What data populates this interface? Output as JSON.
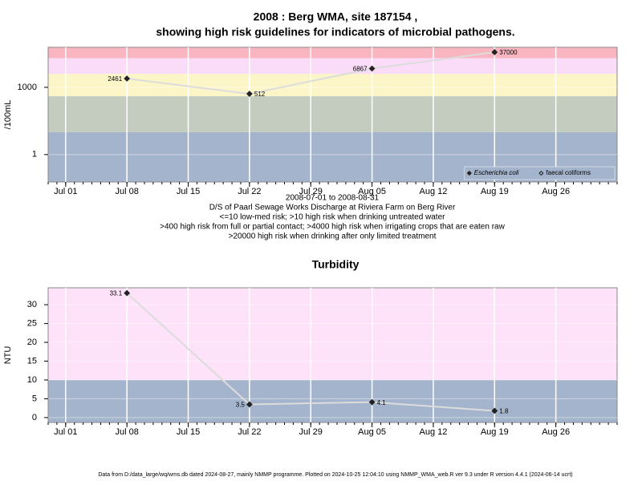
{
  "chart_data": [
    {
      "type": "line",
      "title_lines": [
        "2008 : Berg WMA, site 187154 ,",
        "showing high risk guidelines for indicators of microbial pathogens."
      ],
      "ylabel": "/100mL",
      "log_scale": true,
      "ylim": [
        0.06,
        61000
      ],
      "yticks": [
        1,
        1000
      ],
      "xlim": [
        "2008-06-29",
        "2008-09-02"
      ],
      "xticks": [
        {
          "value": "2008-07-01",
          "label": "Jul 01"
        },
        {
          "value": "2008-07-08",
          "label": "Jul 08"
        },
        {
          "value": "2008-07-15",
          "label": "Jul 15"
        },
        {
          "value": "2008-07-22",
          "label": "Jul 22"
        },
        {
          "value": "2008-07-29",
          "label": "Jul 29"
        },
        {
          "value": "2008-08-05",
          "label": "Aug 05"
        },
        {
          "value": "2008-08-12",
          "label": "Aug 12"
        },
        {
          "value": "2008-08-19",
          "label": "Aug 19"
        },
        {
          "value": "2008-08-26",
          "label": "Aug 26"
        }
      ],
      "x": [
        "2008-07-08",
        "2008-07-22",
        "2008-08-05",
        "2008-08-19"
      ],
      "series": [
        {
          "name": "Escherichia coli",
          "color": "#222222",
          "marker": "filled",
          "values": [
            2461,
            512,
            6867,
            37000
          ]
        },
        {
          "name": "faecal coliforms",
          "color": "#222222",
          "marker": "open",
          "values": [
            null,
            null,
            null,
            null
          ]
        }
      ],
      "line_color": "#dcdcdc",
      "bands": [
        {
          "upper": 10,
          "color": "#a4b4cc"
        },
        {
          "upper": 400,
          "color": "#c4ccc0"
        },
        {
          "upper": 4000,
          "color": "#fbf5c8"
        },
        {
          "upper": 20000,
          "color": "#fbdcf8"
        },
        {
          "upper": null,
          "color": "#f9b6c0"
        }
      ],
      "grid": true,
      "legend": "bottom-right",
      "notes": [
        "2008-07-01 to 2008-08-31",
        "D/S of Paarl Sewage Works Discharge at Riviera Farm on Berg River",
        "<=10 low-med risk; >10 high risk when drinking untreated water",
        ">400 high risk from full or partial contact; >4000 high risk when irrigating crops that are eaten raw",
        ">20000 high risk when drinking after only limited treatment"
      ]
    },
    {
      "type": "line",
      "title_lines": [
        "Turbidity"
      ],
      "ylabel": "NTU",
      "log_scale": false,
      "ylim": [
        -1.3,
        34.5
      ],
      "yticks": [
        0,
        5,
        10,
        15,
        20,
        25,
        30
      ],
      "xlim": [
        "2008-06-29",
        "2008-09-02"
      ],
      "xticks": [
        {
          "value": "2008-07-01",
          "label": "Jul 01"
        },
        {
          "value": "2008-07-08",
          "label": "Jul 08"
        },
        {
          "value": "2008-07-15",
          "label": "Jul 15"
        },
        {
          "value": "2008-07-22",
          "label": "Jul 22"
        },
        {
          "value": "2008-07-29",
          "label": "Jul 29"
        },
        {
          "value": "2008-08-05",
          "label": "Aug 05"
        },
        {
          "value": "2008-08-12",
          "label": "Aug 12"
        },
        {
          "value": "2008-08-19",
          "label": "Aug 19"
        },
        {
          "value": "2008-08-26",
          "label": "Aug 26"
        }
      ],
      "x": [
        "2008-07-08",
        "2008-07-22",
        "2008-08-05",
        "2008-08-19"
      ],
      "values": [
        33.1,
        3.5,
        4.1,
        1.8
      ],
      "color": "#222222",
      "line_color": "#dcdcdc",
      "bands": [
        {
          "upper": 10,
          "color": "#a4b4cc"
        },
        {
          "upper": null,
          "color": "#fde2f9"
        }
      ],
      "grid": true
    }
  ],
  "footer": "Data from D:/data_large/wq/wms.db dated 2024-08-27, mainly NMMP programme. Plotted on 2024-10-25 12:04:10 using NMMP_WMA_web.R ver 9.3 under R version 4.4.1 (2024-06-14 ucrt)"
}
